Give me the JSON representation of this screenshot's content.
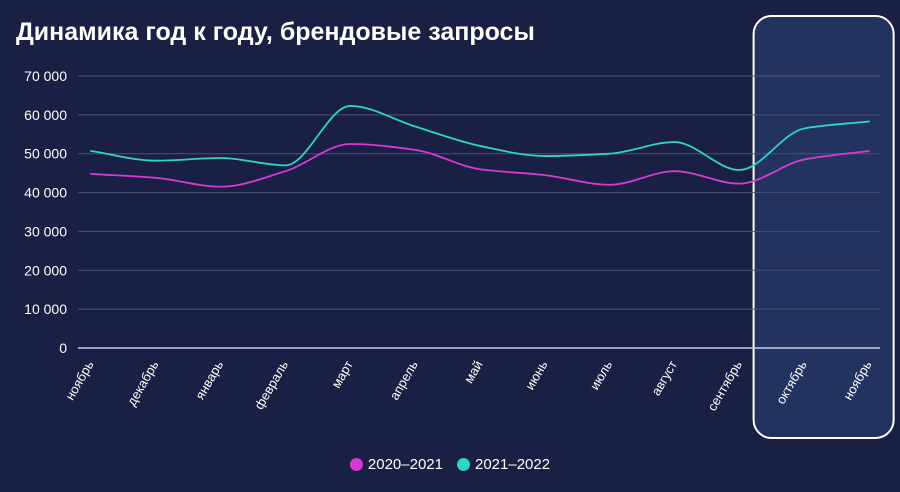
{
  "title": "Динамика год к году, брендовые запросы",
  "colors": {
    "background": "#1a1f44",
    "grid": "#4b5178",
    "highlight_fill": "#243260",
    "highlight_border": "#ffffff",
    "text": "#ffffff"
  },
  "chart_data": {
    "type": "line",
    "title": "Динамика год к году, брендовые запросы",
    "xlabel": "",
    "ylabel": "",
    "categories": [
      "ноябрь",
      "декабрь",
      "январь",
      "февраль",
      "март",
      "апрель",
      "май",
      "июнь",
      "июль",
      "август",
      "сентябрь",
      "октябрь",
      "ноябрь"
    ],
    "series": [
      {
        "name": "2020–2021",
        "color": "#d63bd1",
        "values": [
          44800,
          43800,
          41500,
          45500,
          52500,
          51000,
          46000,
          44500,
          42000,
          45500,
          42300,
          48500,
          50700
        ]
      },
      {
        "name": "2021–2022",
        "color": "#2fd4c7",
        "values": [
          50700,
          48200,
          48900,
          47000,
          62300,
          57000,
          52000,
          49400,
          50000,
          53000,
          45800,
          56500,
          58300
        ]
      }
    ],
    "ylim": [
      0,
      70000
    ],
    "yticks": [
      0,
      10000,
      20000,
      30000,
      40000,
      50000,
      60000,
      70000
    ],
    "ytick_labels": [
      "0",
      "10 000",
      "20 000",
      "30 000",
      "40 000",
      "50 000",
      "60 000",
      "70 000"
    ],
    "grid": true,
    "legend": "bottom-center",
    "highlight_categories": [
      "октябрь",
      "ноябрь"
    ]
  }
}
